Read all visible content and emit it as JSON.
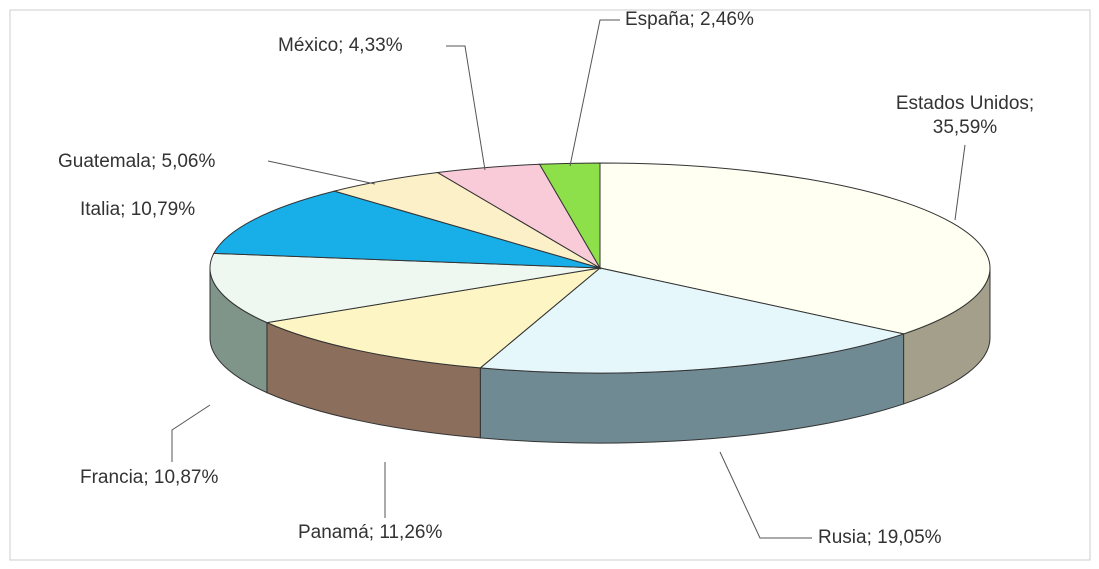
{
  "chart_data": {
    "type": "pie3d",
    "values": [
      35.59,
      19.05,
      11.26,
      10.87,
      10.79,
      5.06,
      4.33,
      2.46
    ],
    "value_labels": [
      "Estados Unidos; 35,59%",
      "Rusia; 19,05%",
      "Panamá; 11,26%",
      "Francia; 10,87%",
      "Italia; 10,79%",
      "Guatemala; 5,06%",
      "México; 4,33%",
      "España; 2,46%"
    ],
    "colors": [
      "#fffff2",
      "#e6f7fb",
      "#fdf6c4",
      "#eef8f1",
      "#18aee8",
      "#fbf0c8",
      "#f9cbd8",
      "#8ee04a"
    ],
    "side_colors": [
      "#a49f8a",
      "#6f8a93",
      "#8b6f5c",
      "#7f958a",
      "#1a6e96",
      "#9c9470",
      "#a07888",
      "#5a9030"
    ]
  }
}
